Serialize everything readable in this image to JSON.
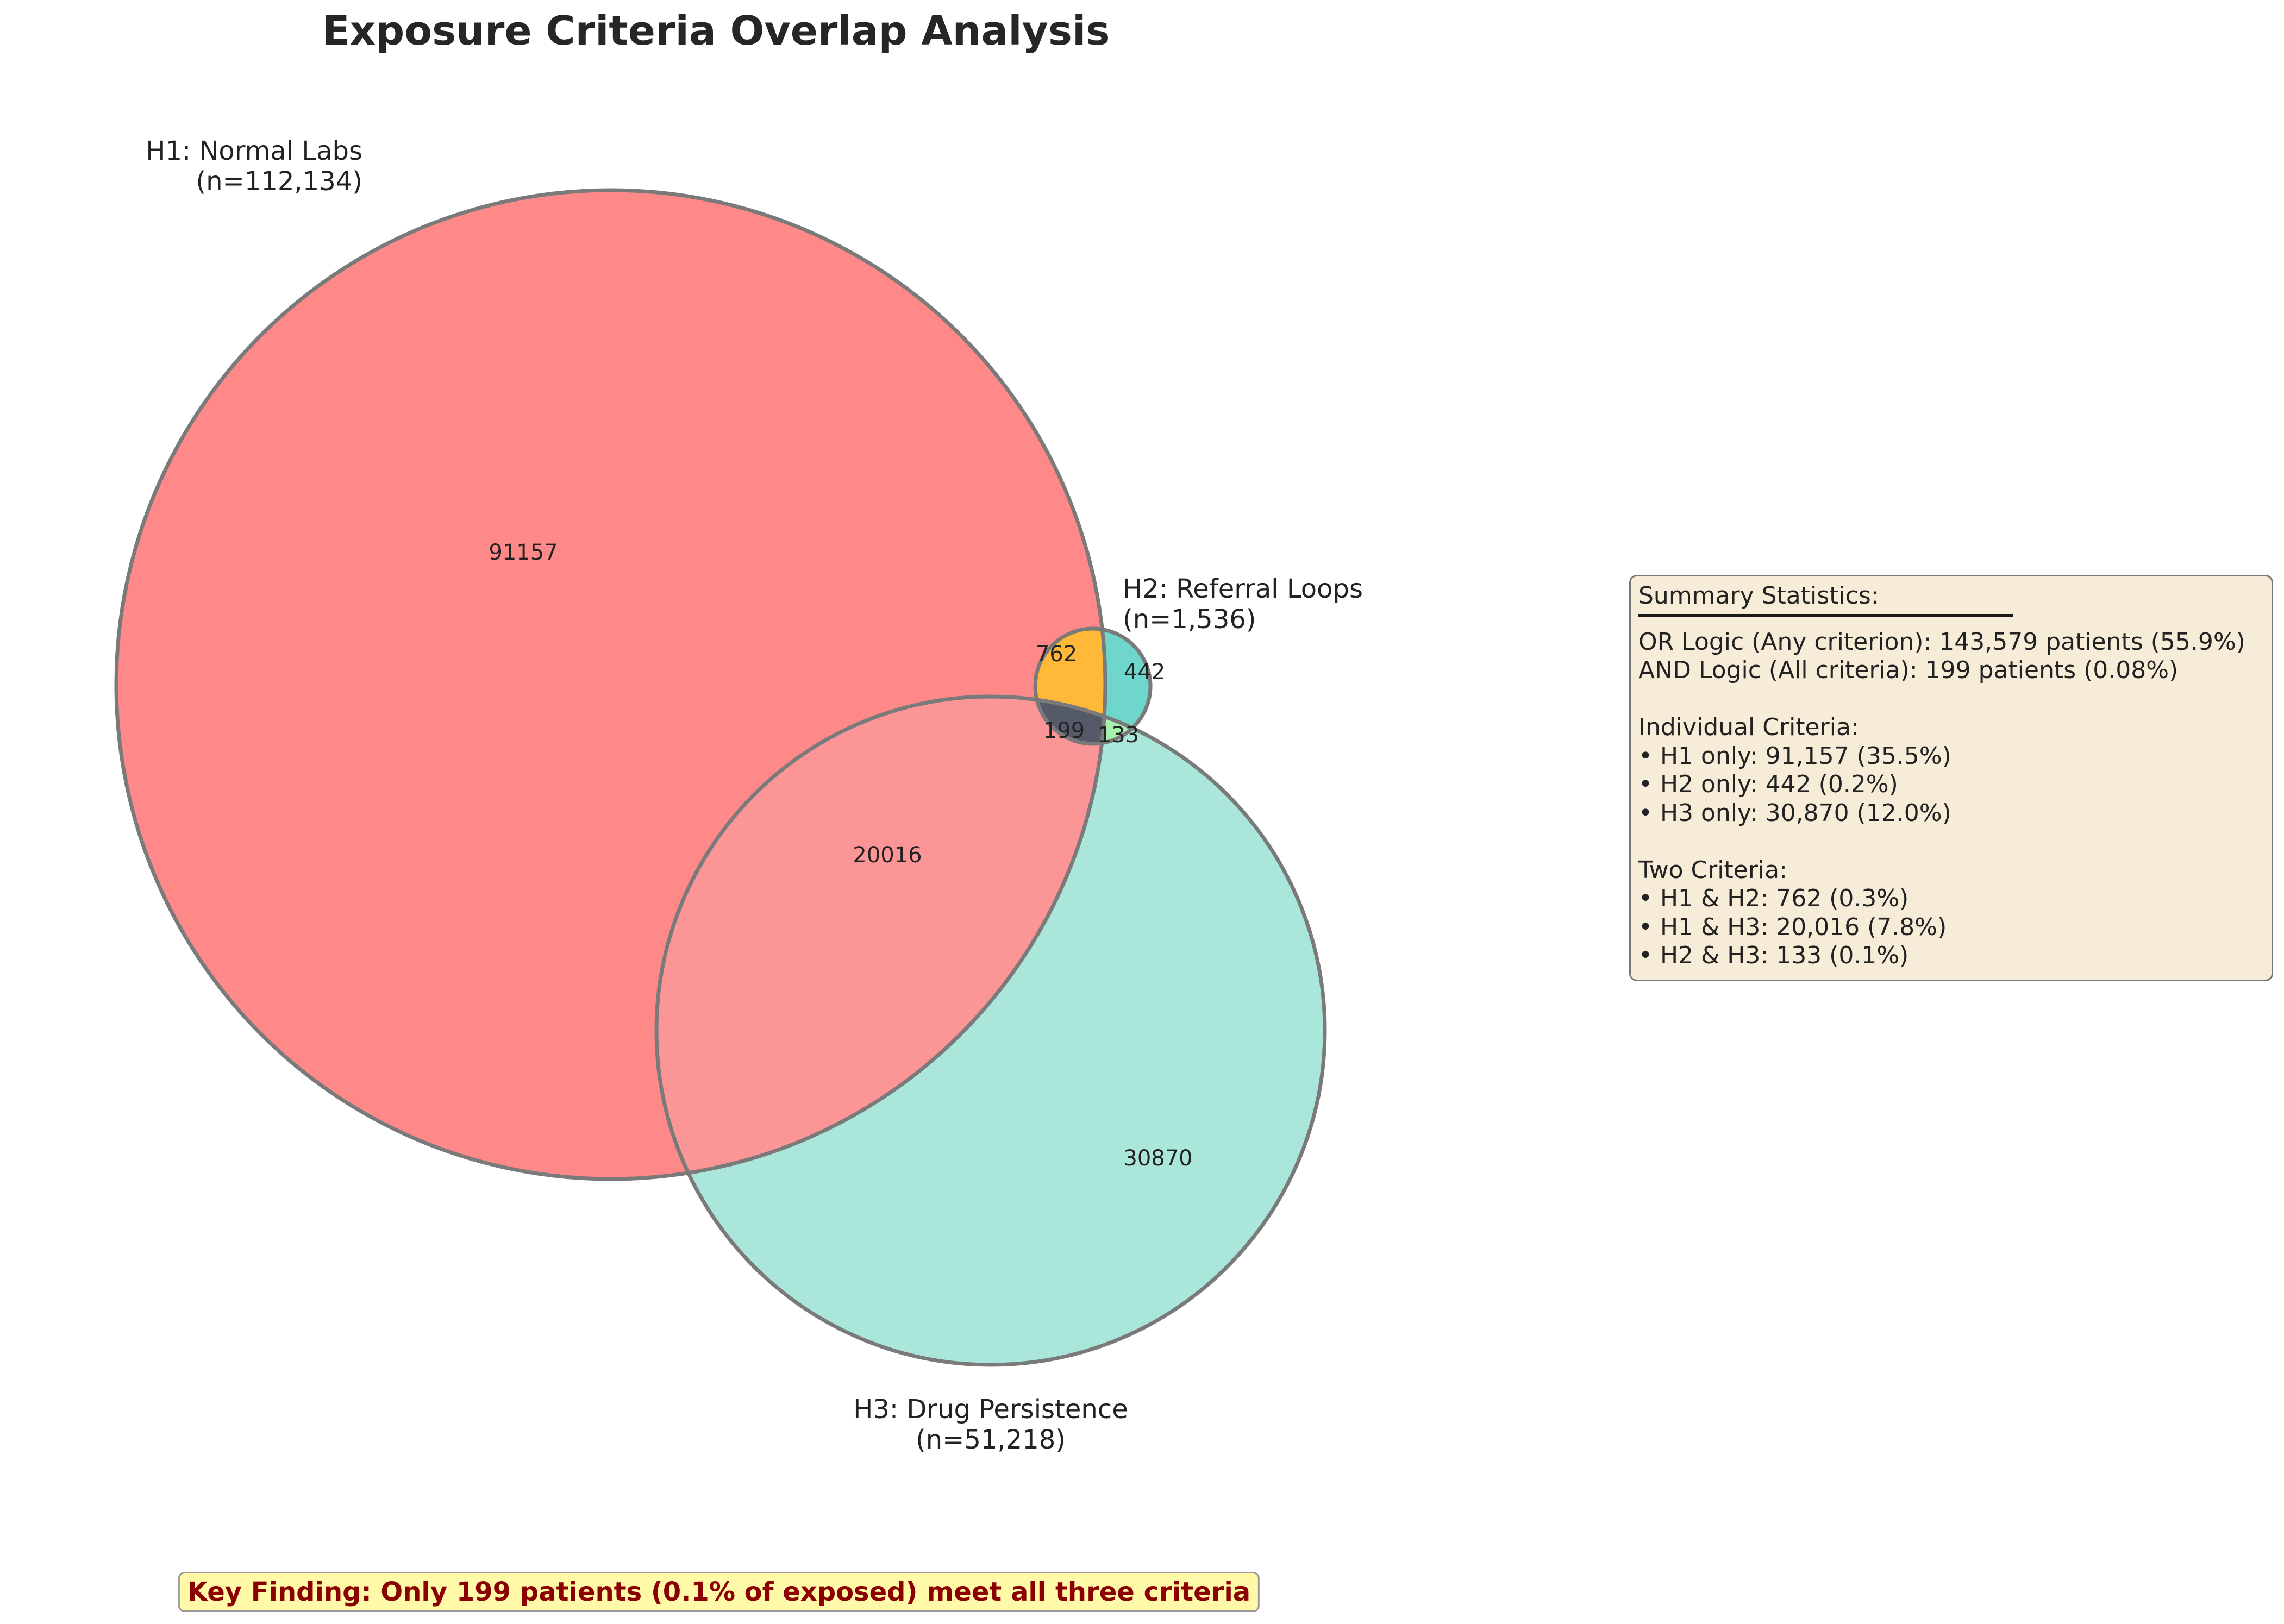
{
  "title": "Exposure Criteria Overlap Analysis",
  "colors": {
    "h1": "#ff8888",
    "h2": "#6fd6cc",
    "h3": "#aae6da",
    "h1_h2": "#ffb838",
    "h1_h3": "#fc9696",
    "h2_h3": "#a7f0ae",
    "h1_h2_h3": "#555a68",
    "outline": "#7a7a7a",
    "summary_bg": "#f7ecd7",
    "key_finding_bg": "#fff9a8",
    "key_finding_text": "#8b0000"
  },
  "sets": {
    "h1": {
      "name": "H1: Normal Labs",
      "n": "(n=112,134)"
    },
    "h2": {
      "name": "H2: Referral Loops",
      "n": "(n=1,536)"
    },
    "h3": {
      "name": "H3: Drug Persistence",
      "n": "(n=51,218)"
    }
  },
  "regions": {
    "h1_only": "91157",
    "h2_only": "442",
    "h3_only": "30870",
    "h1_h2": "762",
    "h1_h3": "20016",
    "h2_h3": "133",
    "h1_h2_h3": "199"
  },
  "summary": {
    "heading": "Summary Statistics:",
    "lines": [
      "OR Logic (Any criterion): 143,579 patients (55.9%)",
      "AND Logic (All criteria): 199 patients (0.08%)",
      "",
      "Individual Criteria:",
      "• H1 only: 91,157 (35.5%)",
      "• H2 only: 442 (0.2%)",
      "• H3 only: 30,870 (12.0%)",
      "",
      "Two Criteria:",
      "• H1 & H2: 762 (0.3%)",
      "• H1 & H3: 20,016 (7.8%)",
      "• H2 & H3: 133 (0.1%)"
    ]
  },
  "key_finding": "Key Finding: Only 199 patients (0.1% of exposed) meet all three criteria"
}
